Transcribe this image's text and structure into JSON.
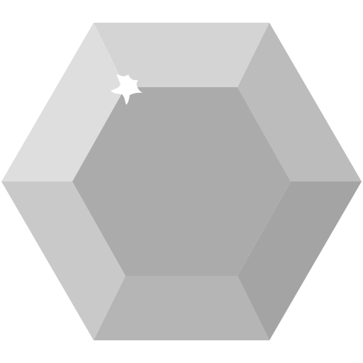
{
  "icon": {
    "name": "hexagon-gem-icon",
    "colors": {
      "facet_top": "#d4d4d4",
      "facet_upper_left": "#dedede",
      "facet_upper_right": "#bcbcbc",
      "facet_lower_left": "#c9c9c9",
      "facet_lower_right": "#a4a4a4",
      "facet_bottom": "#b5b5b5",
      "table_center": "#ababab",
      "sparkle": "#ffffff"
    }
  }
}
